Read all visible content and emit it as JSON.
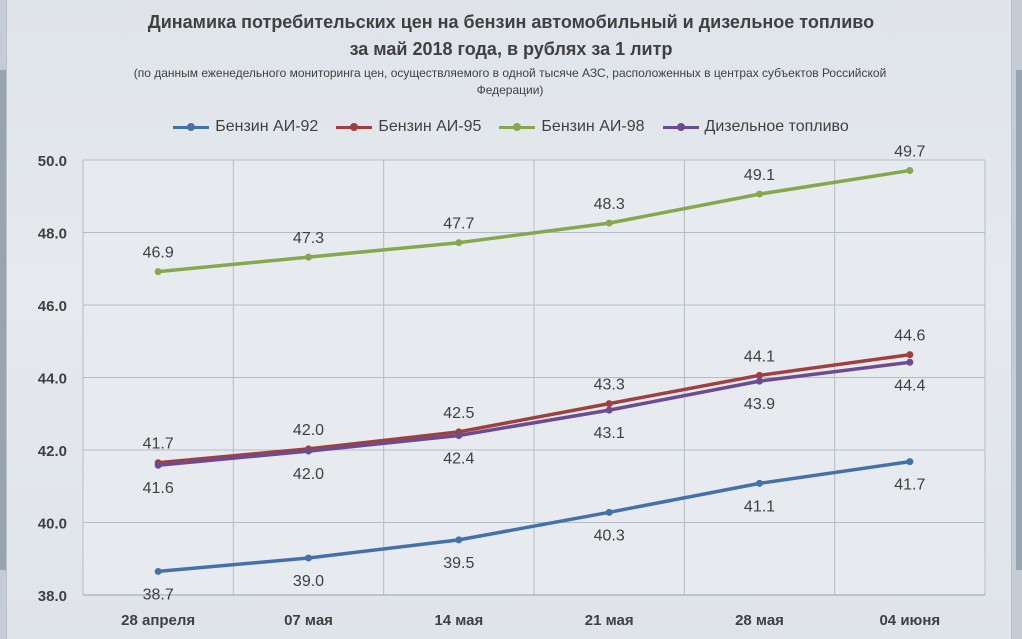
{
  "title_line1": "Динамика потребительских цен на бензин автомобильный  и дизельное топливо",
  "title_line2": "за май 2018 года,  в рублях за 1 литр",
  "subtitle": "(по данным еженедельного мониторинга цен, осуществляемого в одной тысяче АЗС, расположенных в центрах субъектов Российской Федерации)",
  "chart_data": {
    "type": "line",
    "categories": [
      "28 апреля",
      "07 мая",
      "14 мая",
      "21 мая",
      "28 мая",
      "04 июня"
    ],
    "series": [
      {
        "name": "Бензин АИ-92",
        "color": "#4472a8",
        "values": [
          38.65,
          39.02,
          39.52,
          40.28,
          41.08,
          41.68
        ],
        "labels": [
          "38.7",
          "39.0",
          "39.5",
          "40.3",
          "41.1",
          "41.7"
        ],
        "label_pos": [
          "below",
          "below",
          "below",
          "below",
          "below",
          "below"
        ]
      },
      {
        "name": "Бензин АИ-95",
        "color": "#a0403e",
        "values": [
          41.65,
          42.03,
          42.5,
          43.28,
          44.06,
          44.63
        ],
        "labels": [
          "41.7",
          "42.0",
          "42.5",
          "43.3",
          "44.1",
          "44.6"
        ],
        "label_pos": [
          "above",
          "above",
          "above",
          "above",
          "above",
          "above"
        ]
      },
      {
        "name": "Бензин АИ-98",
        "color": "#85a84e",
        "values": [
          46.92,
          47.32,
          47.72,
          48.26,
          49.06,
          49.71
        ],
        "labels": [
          "46.9",
          "47.3",
          "47.7",
          "48.3",
          "49.1",
          "49.7"
        ],
        "label_pos": [
          "above",
          "above",
          "above",
          "above",
          "above",
          "above"
        ]
      },
      {
        "name": "Дизельное топливо",
        "color": "#6b4c93",
        "values": [
          41.58,
          41.97,
          42.4,
          43.1,
          43.9,
          44.42
        ],
        "labels": [
          "41.6",
          "42.0",
          "42.4",
          "43.1",
          "43.9",
          "44.4"
        ],
        "label_pos": [
          "below",
          "below",
          "below",
          "below",
          "below",
          "below"
        ]
      }
    ],
    "y_ticks": [
      "38.0",
      "40.0",
      "42.0",
      "44.0",
      "46.0",
      "48.0",
      "50.0"
    ],
    "ylim": [
      38,
      50
    ],
    "grid": true,
    "legend_position": "top"
  }
}
